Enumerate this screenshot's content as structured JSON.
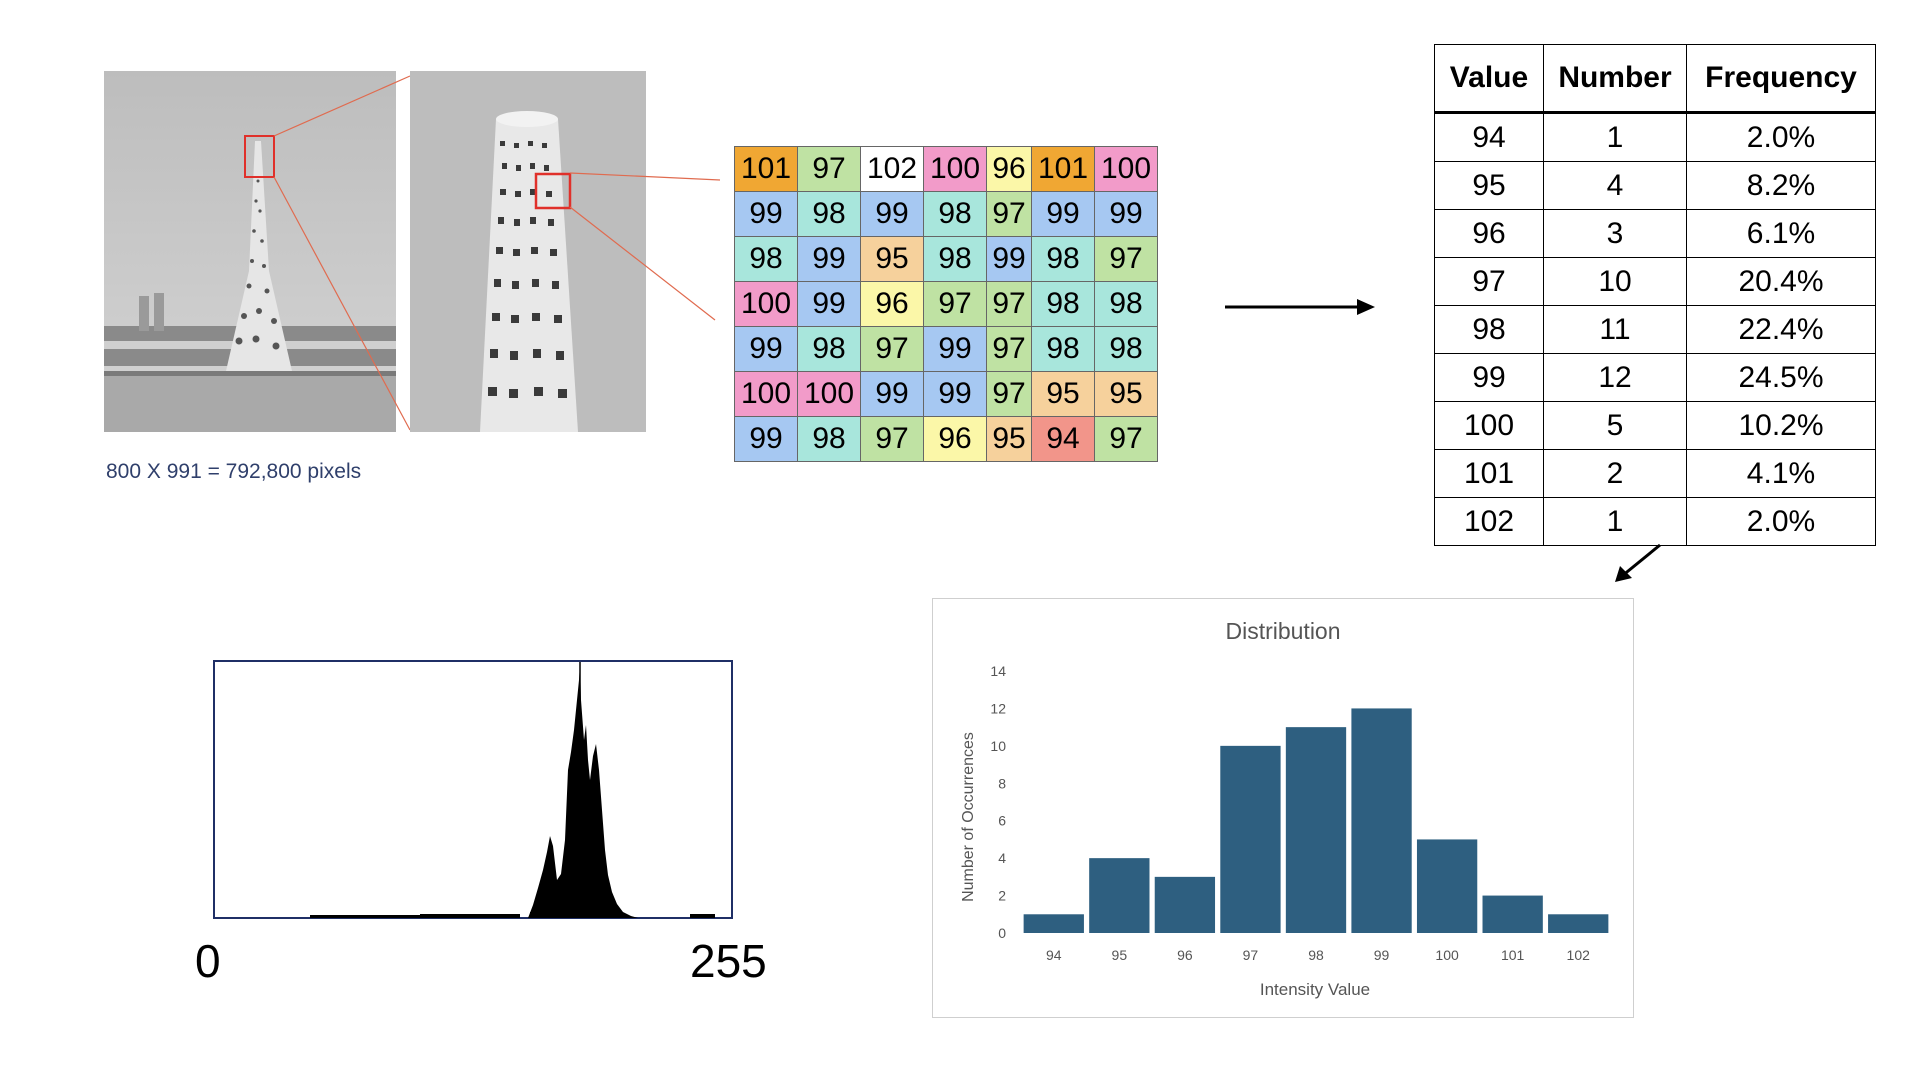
{
  "caption": "800 X 991 = 792,800 pixels",
  "pixel_grid": [
    [
      {
        "v": "101",
        "c": "#f0a733"
      },
      {
        "v": "97",
        "c": "#bfe2a3"
      },
      {
        "v": "102",
        "c": "#ffffff"
      },
      {
        "v": "100",
        "c": "#f29bc9"
      },
      {
        "v": "96",
        "c": "#fbf7a8"
      },
      {
        "v": "101",
        "c": "#f0a733"
      },
      {
        "v": "100",
        "c": "#f29bc9"
      }
    ],
    [
      {
        "v": "99",
        "c": "#a6c8f2"
      },
      {
        "v": "98",
        "c": "#a8e6dc"
      },
      {
        "v": "99",
        "c": "#a6c8f2"
      },
      {
        "v": "98",
        "c": "#a8e6dc"
      },
      {
        "v": "97",
        "c": "#bfe2a3"
      },
      {
        "v": "99",
        "c": "#a6c8f2"
      },
      {
        "v": "99",
        "c": "#a6c8f2"
      }
    ],
    [
      {
        "v": "98",
        "c": "#a8e6dc"
      },
      {
        "v": "99",
        "c": "#a6c8f2"
      },
      {
        "v": "95",
        "c": "#f6d19c"
      },
      {
        "v": "98",
        "c": "#a8e6dc"
      },
      {
        "v": "99",
        "c": "#a6c8f2"
      },
      {
        "v": "98",
        "c": "#a8e6dc"
      },
      {
        "v": "97",
        "c": "#bfe2a3"
      }
    ],
    [
      {
        "v": "100",
        "c": "#f29bc9"
      },
      {
        "v": "99",
        "c": "#a6c8f2"
      },
      {
        "v": "96",
        "c": "#fbf7a8"
      },
      {
        "v": "97",
        "c": "#bfe2a3"
      },
      {
        "v": "97",
        "c": "#bfe2a3"
      },
      {
        "v": "98",
        "c": "#a8e6dc"
      },
      {
        "v": "98",
        "c": "#a8e6dc"
      }
    ],
    [
      {
        "v": "99",
        "c": "#a6c8f2"
      },
      {
        "v": "98",
        "c": "#a8e6dc"
      },
      {
        "v": "97",
        "c": "#bfe2a3"
      },
      {
        "v": "99",
        "c": "#a6c8f2"
      },
      {
        "v": "97",
        "c": "#bfe2a3"
      },
      {
        "v": "98",
        "c": "#a8e6dc"
      },
      {
        "v": "98",
        "c": "#a8e6dc"
      }
    ],
    [
      {
        "v": "100",
        "c": "#f29bc9"
      },
      {
        "v": "100",
        "c": "#f29bc9"
      },
      {
        "v": "99",
        "c": "#a6c8f2"
      },
      {
        "v": "99",
        "c": "#a6c8f2"
      },
      {
        "v": "97",
        "c": "#bfe2a3"
      },
      {
        "v": "95",
        "c": "#f6d19c"
      },
      {
        "v": "95",
        "c": "#f6d19c"
      }
    ],
    [
      {
        "v": "99",
        "c": "#a6c8f2"
      },
      {
        "v": "98",
        "c": "#a8e6dc"
      },
      {
        "v": "97",
        "c": "#bfe2a3"
      },
      {
        "v": "96",
        "c": "#fbf7a8"
      },
      {
        "v": "95",
        "c": "#f6d19c"
      },
      {
        "v": "94",
        "c": "#f2958a"
      },
      {
        "v": "97",
        "c": "#bfe2a3"
      }
    ]
  ],
  "freq_table": {
    "headers": [
      "Value",
      "Number",
      "Frequency"
    ],
    "rows": [
      [
        "94",
        "1",
        "2.0%"
      ],
      [
        "95",
        "4",
        "8.2%"
      ],
      [
        "96",
        "3",
        "6.1%"
      ],
      [
        "97",
        "10",
        "20.4%"
      ],
      [
        "98",
        "11",
        "22.4%"
      ],
      [
        "99",
        "12",
        "24.5%"
      ],
      [
        "100",
        "5",
        "10.2%"
      ],
      [
        "101",
        "2",
        "4.1%"
      ],
      [
        "102",
        "1",
        "2.0%"
      ]
    ]
  },
  "histogram": {
    "min_label": "0",
    "max_label": "255"
  },
  "chart_data": {
    "type": "bar",
    "title": "Distribution",
    "xlabel": "Intensity Value",
    "ylabel": "Number of Occurrences",
    "categories": [
      "94",
      "95",
      "96",
      "97",
      "98",
      "99",
      "100",
      "101",
      "102"
    ],
    "values": [
      1,
      4,
      3,
      10,
      11,
      12,
      5,
      2,
      1
    ],
    "ylim": [
      0,
      14
    ],
    "yticks": [
      0,
      2,
      4,
      6,
      8,
      10,
      12,
      14
    ],
    "bar_color": "#2e5f80",
    "grid": false
  }
}
